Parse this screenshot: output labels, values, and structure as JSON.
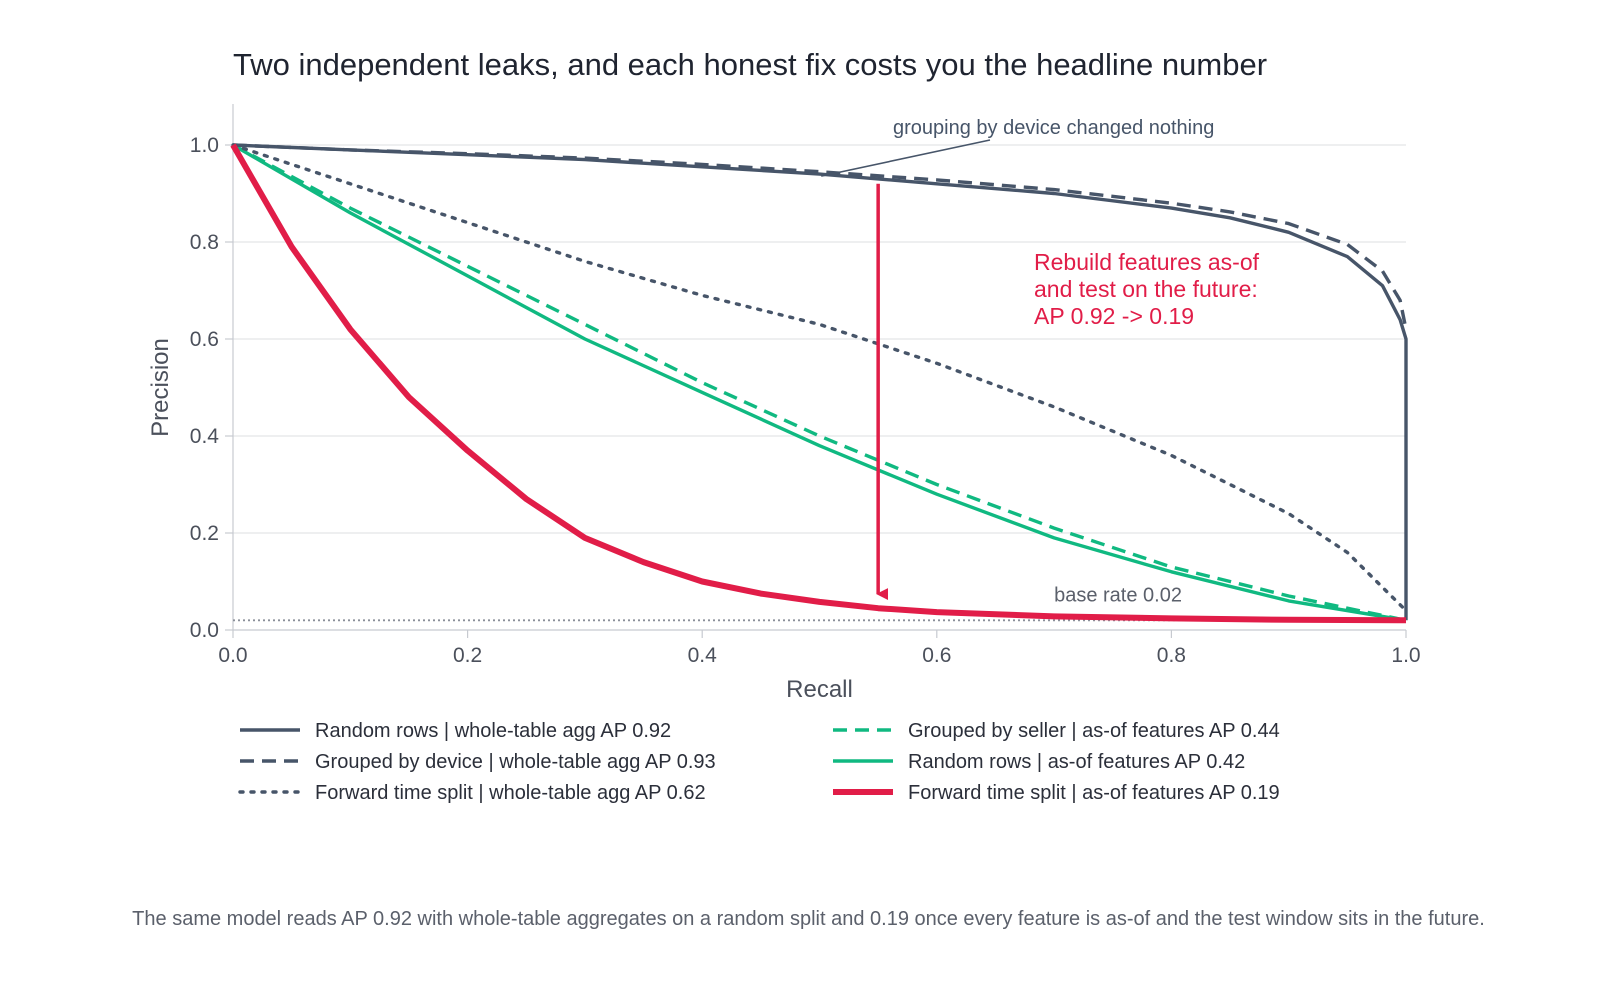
{
  "chart_data": {
    "type": "line",
    "title": "Two independent leaks, and each honest fix costs you the headline number",
    "xlabel": "Recall",
    "ylabel": "Precision",
    "xlim": [
      0,
      1
    ],
    "ylim": [
      0,
      1.08
    ],
    "x_ticks": [
      "0.0",
      "0.2",
      "0.4",
      "0.6",
      "0.8",
      "1.0"
    ],
    "y_ticks": [
      "0.0",
      "0.2",
      "0.4",
      "0.6",
      "0.8",
      "1.0"
    ],
    "grid": "horizontal",
    "series": [
      {
        "name": "Random rows | whole-table agg",
        "ap": "AP 0.92",
        "color": "#475569",
        "style": "solid",
        "width": "normal",
        "x": [
          0,
          0.1,
          0.2,
          0.3,
          0.4,
          0.5,
          0.6,
          0.7,
          0.8,
          0.85,
          0.9,
          0.95,
          0.98,
          0.995,
          1.0,
          1.0
        ],
        "y": [
          1.0,
          0.99,
          0.98,
          0.97,
          0.955,
          0.94,
          0.92,
          0.9,
          0.87,
          0.85,
          0.82,
          0.77,
          0.71,
          0.64,
          0.6,
          0.02
        ]
      },
      {
        "name": "Grouped by device | whole-table agg",
        "ap": "AP 0.93",
        "color": "#475569",
        "style": "dashed",
        "width": "normal",
        "x": [
          0,
          0.1,
          0.2,
          0.3,
          0.4,
          0.5,
          0.6,
          0.7,
          0.8,
          0.85,
          0.9,
          0.95,
          0.98,
          0.995,
          1.0
        ],
        "y": [
          1.0,
          0.99,
          0.982,
          0.973,
          0.96,
          0.945,
          0.928,
          0.908,
          0.88,
          0.862,
          0.838,
          0.795,
          0.74,
          0.68,
          0.62
        ]
      },
      {
        "name": "Forward time split | whole-table agg",
        "ap": "AP 0.62",
        "color": "#475569",
        "style": "dotted",
        "width": "normal",
        "x": [
          0,
          0.1,
          0.2,
          0.3,
          0.4,
          0.5,
          0.6,
          0.7,
          0.8,
          0.9,
          0.95,
          1.0
        ],
        "y": [
          1.0,
          0.92,
          0.84,
          0.76,
          0.69,
          0.63,
          0.55,
          0.46,
          0.36,
          0.24,
          0.16,
          0.04
        ]
      },
      {
        "name": "Grouped by seller | as-of features",
        "ap": "AP 0.44",
        "color": "#10b981",
        "style": "dashed",
        "width": "normal",
        "x": [
          0,
          0.1,
          0.2,
          0.3,
          0.4,
          0.5,
          0.6,
          0.7,
          0.8,
          0.9,
          1.0
        ],
        "y": [
          1.0,
          0.87,
          0.75,
          0.63,
          0.51,
          0.4,
          0.3,
          0.21,
          0.13,
          0.07,
          0.02
        ]
      },
      {
        "name": "Random rows | as-of features",
        "ap": "AP 0.42",
        "color": "#10b981",
        "style": "solid",
        "width": "normal",
        "x": [
          0,
          0.1,
          0.2,
          0.3,
          0.4,
          0.5,
          0.6,
          0.7,
          0.8,
          0.9,
          1.0
        ],
        "y": [
          1.0,
          0.86,
          0.73,
          0.6,
          0.49,
          0.38,
          0.28,
          0.19,
          0.12,
          0.06,
          0.02
        ]
      },
      {
        "name": "Forward time split | as-of features",
        "ap": "AP 0.19",
        "color": "#e11d48",
        "style": "solid",
        "width": "thick",
        "x": [
          0,
          0.05,
          0.1,
          0.15,
          0.2,
          0.25,
          0.3,
          0.35,
          0.4,
          0.45,
          0.5,
          0.55,
          0.6,
          0.7,
          0.8,
          0.9,
          1.0
        ],
        "y": [
          1.0,
          0.79,
          0.62,
          0.48,
          0.37,
          0.27,
          0.19,
          0.14,
          0.1,
          0.075,
          0.058,
          0.045,
          0.037,
          0.028,
          0.024,
          0.021,
          0.02
        ]
      }
    ],
    "baseline": {
      "label": "base rate 0.02",
      "y": 0.02,
      "color": "#8a8f99"
    },
    "annotations": [
      {
        "text": "grouping by device changed nothing",
        "target_x": 0.51,
        "target_y": 0.94,
        "color": "#475569"
      },
      {
        "lines": [
          "Rebuild features as-of",
          "and test on the future:",
          "AP 0.92 -> 0.19"
        ],
        "color": "#e11d48",
        "arrow_x": 0.55,
        "arrow_from_y": 0.92,
        "arrow_to_y": 0.07
      }
    ],
    "legend_position": "bottom"
  },
  "caption": "The same model reads AP 0.92 with whole-table aggregates on a random split and 0.19 once every feature is as-of and the test window sits in the future."
}
